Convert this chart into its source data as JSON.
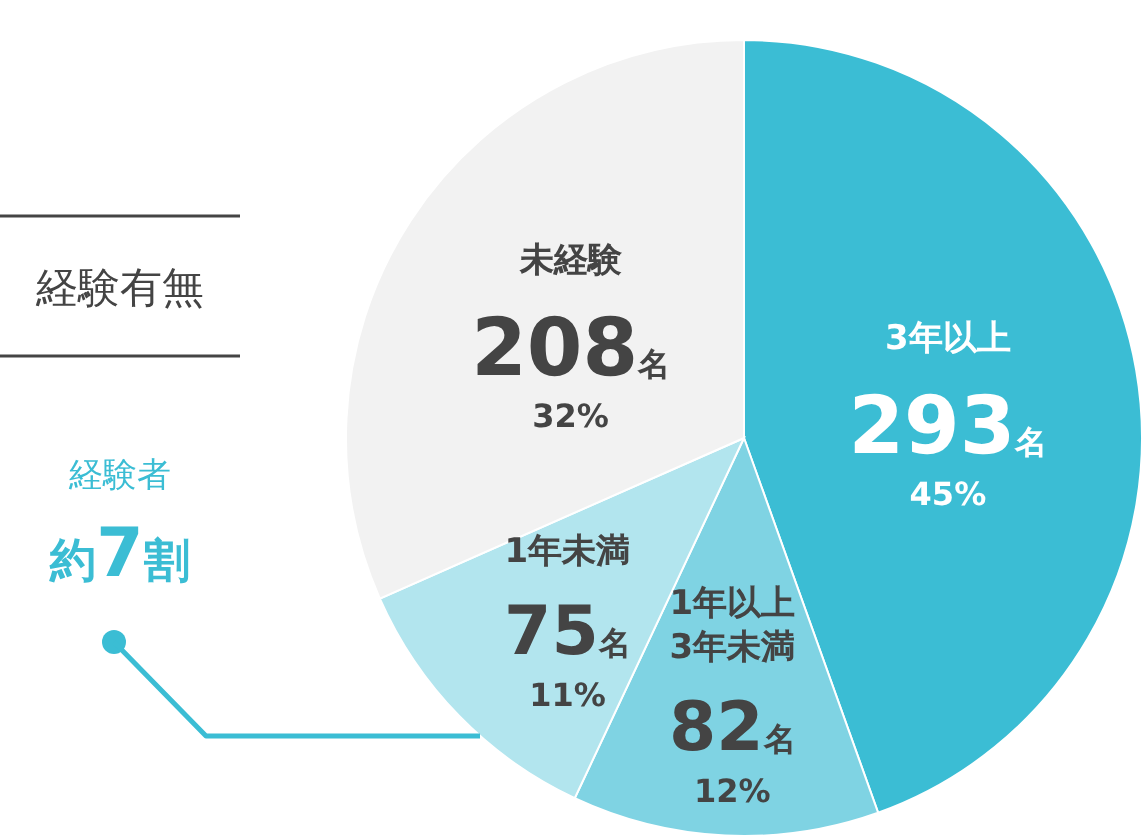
{
  "chart_data": {
    "type": "pie",
    "title": "経験有無",
    "categories": [
      "3年以上",
      "1年以上\n3年未満",
      "1年未満",
      "未経験"
    ],
    "values": [
      293,
      82,
      75,
      208
    ],
    "colors": [
      "#3bbdd4",
      "#7fd3e3",
      "#b2e5ee",
      "#f2f2f2"
    ],
    "value_labels": [
      "293名\n45%",
      "82名\n12%",
      "75名\n11%",
      "208名\n32%"
    ],
    "annotations": [
      "経験者",
      "約7割"
    ]
  }
}
